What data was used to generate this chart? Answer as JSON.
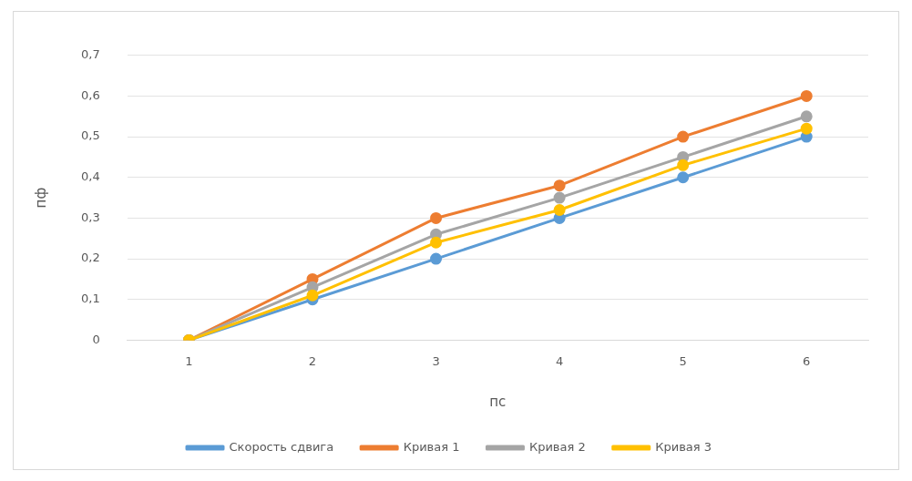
{
  "chart_data": {
    "type": "line",
    "xlabel": "пс",
    "ylabel": "пф",
    "categories": [
      "1",
      "2",
      "3",
      "4",
      "5",
      "6"
    ],
    "series": [
      {
        "name": "Скорость сдвига",
        "color": "#5b9bd5",
        "values": [
          0,
          0.1,
          0.2,
          0.3,
          0.4,
          0.5
        ]
      },
      {
        "name": "Кривая 1",
        "color": "#ed7d31",
        "values": [
          0,
          0.15,
          0.3,
          0.38,
          0.5,
          0.6
        ]
      },
      {
        "name": "Кривая 2",
        "color": "#a5a5a5",
        "values": [
          0,
          0.13,
          0.26,
          0.35,
          0.45,
          0.55
        ]
      },
      {
        "name": "Кривая 3",
        "color": "#ffc000",
        "values": [
          0,
          0.11,
          0.24,
          0.32,
          0.43,
          0.52
        ]
      }
    ],
    "ylim": [
      0,
      0.7
    ],
    "yticks": [
      0,
      {
        "value": 0.1,
        "label": "0,1"
      },
      {
        "value": 0.2,
        "label": "0,2"
      },
      {
        "value": 0.3,
        "label": "0,3"
      },
      {
        "value": 0.4,
        "label": "0,4"
      },
      {
        "value": 0.5,
        "label": "0,5"
      },
      {
        "value": 0.6,
        "label": "0,6"
      },
      {
        "value": 0.7,
        "label": "0,7"
      }
    ],
    "grid": "y",
    "legend": "bottom",
    "marker": "circle",
    "line_style": "solid"
  }
}
